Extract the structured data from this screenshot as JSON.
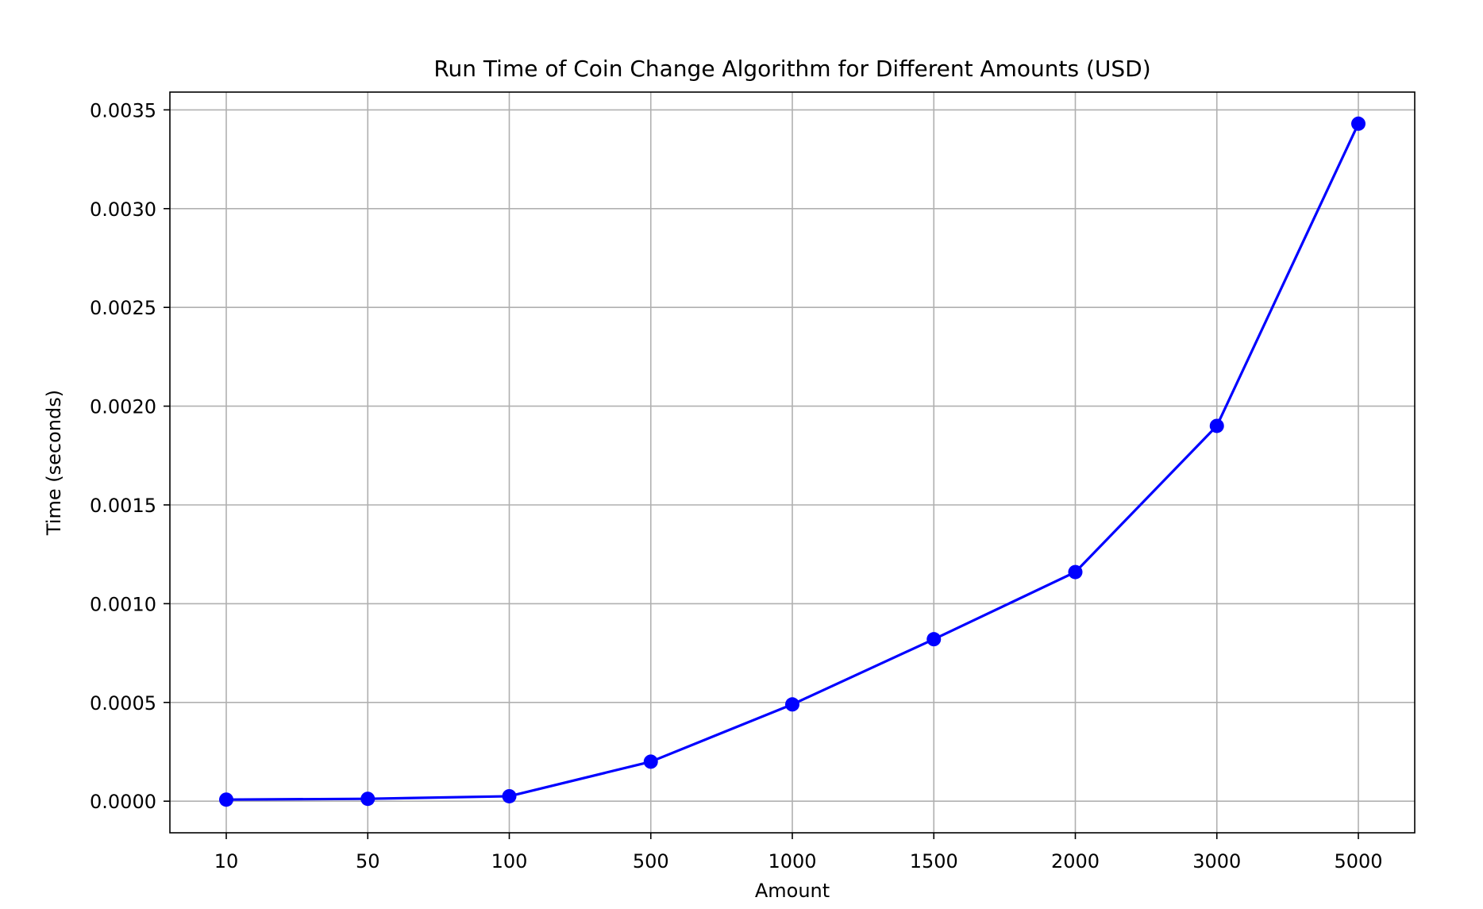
{
  "chart_data": {
    "type": "line",
    "title": "Run Time of Coin Change Algorithm for Different Amounts (USD)",
    "xlabel": "Amount",
    "ylabel": "Time (seconds)",
    "categories": [
      "10",
      "50",
      "100",
      "500",
      "1000",
      "1500",
      "2000",
      "3000",
      "5000"
    ],
    "series": [
      {
        "values": [
          8e-06,
          1.2e-05,
          2.5e-05,
          0.0002,
          0.00049,
          0.00082,
          0.00116,
          0.0019,
          0.00343
        ],
        "color": "#0000ff",
        "marker": "circle"
      }
    ],
    "ylim": [
      -0.00016,
      0.00359
    ],
    "yticks": [
      "0.0000",
      "0.0005",
      "0.0010",
      "0.0015",
      "0.0020",
      "0.0025",
      "0.0030",
      "0.0035"
    ],
    "ytick_values": [
      0,
      0.0005,
      0.001,
      0.0015,
      0.002,
      0.0025,
      0.003,
      0.0035
    ],
    "grid": true,
    "grid_color": "#b0b0b0",
    "legend": false
  }
}
